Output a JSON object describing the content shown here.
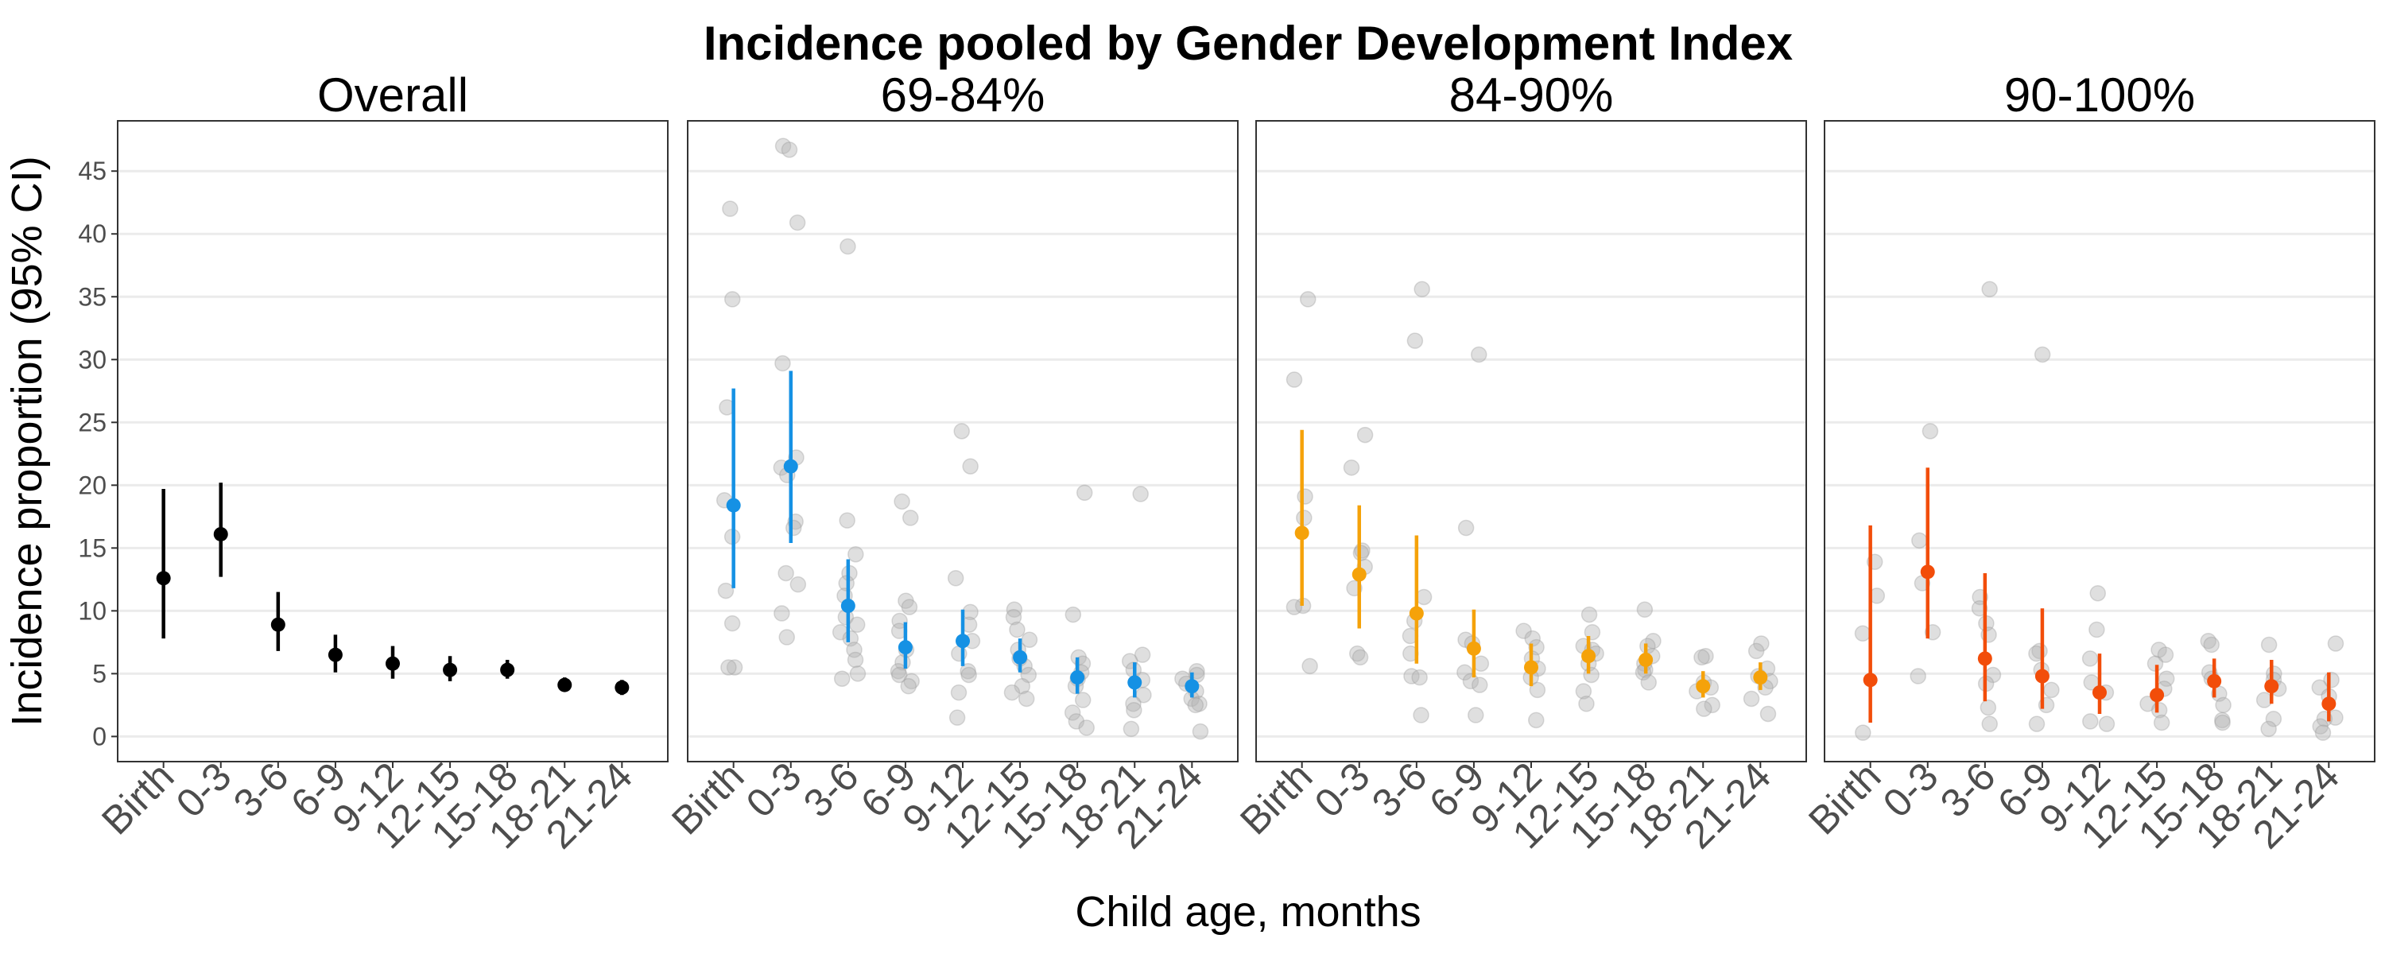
{
  "chart_data": {
    "type": "scatter",
    "title": "Incidence pooled by Gender Development Index",
    "xlabel": "Child age, months",
    "ylabel": "Incidence proportion (95% CI)",
    "ylim": [
      -2,
      49
    ],
    "yticks": [
      0,
      5,
      10,
      15,
      20,
      25,
      30,
      35,
      40,
      45
    ],
    "categories": [
      "Birth",
      "0-3",
      "3-6",
      "6-9",
      "9-12",
      "12-15",
      "15-18",
      "18-21",
      "21-24"
    ],
    "grid": true,
    "legend": "none",
    "panels": [
      {
        "label": "Overall",
        "color": "#000000",
        "estimates": [
          {
            "category": "Birth",
            "value": 12.6,
            "lower": 7.8,
            "upper": 19.7
          },
          {
            "category": "0-3",
            "value": 16.1,
            "lower": 12.7,
            "upper": 20.2
          },
          {
            "category": "3-6",
            "value": 8.9,
            "lower": 6.8,
            "upper": 11.5
          },
          {
            "category": "6-9",
            "value": 6.5,
            "lower": 5.1,
            "upper": 8.1
          },
          {
            "category": "9-12",
            "value": 5.8,
            "lower": 4.6,
            "upper": 7.2
          },
          {
            "category": "12-15",
            "value": 5.3,
            "lower": 4.4,
            "upper": 6.4
          },
          {
            "category": "15-18",
            "value": 5.3,
            "lower": 4.6,
            "upper": 6.1
          },
          {
            "category": "18-21",
            "value": 4.1,
            "lower": 3.6,
            "upper": 4.7
          },
          {
            "category": "21-24",
            "value": 3.9,
            "lower": 3.3,
            "upper": 4.5
          }
        ],
        "studies": []
      },
      {
        "label": "69-84%",
        "color": "#1591e4",
        "estimates": [
          {
            "category": "Birth",
            "value": 18.4,
            "lower": 11.8,
            "upper": 27.7
          },
          {
            "category": "0-3",
            "value": 21.5,
            "lower": 15.4,
            "upper": 29.1
          },
          {
            "category": "3-6",
            "value": 10.4,
            "lower": 7.5,
            "upper": 14.1
          },
          {
            "category": "6-9",
            "value": 7.1,
            "lower": 5.4,
            "upper": 9.1
          },
          {
            "category": "9-12",
            "value": 7.6,
            "lower": 5.6,
            "upper": 10.1
          },
          {
            "category": "12-15",
            "value": 6.3,
            "lower": 5.1,
            "upper": 7.8
          },
          {
            "category": "15-18",
            "value": 4.7,
            "lower": 3.4,
            "upper": 6.3
          },
          {
            "category": "18-21",
            "value": 4.3,
            "lower": 3.1,
            "upper": 5.9
          },
          {
            "category": "21-24",
            "value": 4.0,
            "lower": 3.1,
            "upper": 5.1
          }
        ],
        "studies": [
          {
            "category": "Birth",
            "values": [
              42,
              34.8,
              26.2,
              18.8,
              15.9,
              11.6,
              9.0,
              5.5,
              5.5
            ]
          },
          {
            "category": "0-3",
            "values": [
              47,
              46.7,
              40.9,
              29.7,
              22.2,
              21.4,
              20.8,
              17.1,
              16.6,
              13,
              12.1,
              9.8,
              7.9
            ]
          },
          {
            "category": "3-6",
            "values": [
              39,
              17.2,
              14.5,
              13,
              12.2,
              11.2,
              9.5,
              8.9,
              8.3,
              7.8,
              6.9,
              6.1,
              5,
              4.6
            ]
          },
          {
            "category": "6-9",
            "values": [
              18.7,
              17.4,
              10.8,
              10.3,
              9.2,
              8.4,
              6.9,
              5.9,
              5.2,
              4.9,
              4.4,
              4.0
            ]
          },
          {
            "category": "9-12",
            "values": [
              24.3,
              21.5,
              12.6,
              9.9,
              8.9,
              7.6,
              6.6,
              5.2,
              4.9,
              3.5,
              1.5
            ]
          },
          {
            "category": "12-15",
            "values": [
              10.1,
              9.5,
              8.5,
              7.7,
              6.9,
              6.2,
              5.6,
              4.9,
              4.0,
              3.5,
              3.0
            ]
          },
          {
            "category": "15-18",
            "values": [
              19.4,
              9.7,
              6.3,
              5.8,
              5.1,
              4.6,
              4.0,
              2.9,
              1.9,
              1.2,
              0.7
            ]
          },
          {
            "category": "18-21",
            "values": [
              19.3,
              6.5,
              6.0,
              5.3,
              4.5,
              3.3,
              2.6,
              2.1,
              0.6
            ]
          },
          {
            "category": "21-24",
            "values": [
              5.2,
              4.9,
              4.6,
              4.2,
              3.6,
              3.0,
              2.6,
              2.5,
              0.4
            ]
          }
        ]
      },
      {
        "label": "84-90%",
        "color": "#f5a20a",
        "estimates": [
          {
            "category": "Birth",
            "value": 16.2,
            "lower": 10.4,
            "upper": 24.4
          },
          {
            "category": "0-3",
            "value": 12.9,
            "lower": 8.6,
            "upper": 18.4
          },
          {
            "category": "3-6",
            "value": 9.8,
            "lower": 5.8,
            "upper": 16.0
          },
          {
            "category": "6-9",
            "value": 7.0,
            "lower": 4.7,
            "upper": 10.1
          },
          {
            "category": "9-12",
            "value": 5.5,
            "lower": 4.0,
            "upper": 7.4
          },
          {
            "category": "12-15",
            "value": 6.4,
            "lower": 5.0,
            "upper": 8.0
          },
          {
            "category": "15-18",
            "value": 6.1,
            "lower": 5.0,
            "upper": 7.4
          },
          {
            "category": "18-21",
            "value": 4.0,
            "lower": 3.1,
            "upper": 5.2
          },
          {
            "category": "21-24",
            "value": 4.7,
            "lower": 3.7,
            "upper": 5.9
          }
        ],
        "studies": [
          {
            "category": "Birth",
            "values": [
              34.8,
              28.4,
              19.1,
              17.4,
              10.4,
              10.3,
              5.6
            ]
          },
          {
            "category": "0-3",
            "values": [
              24.0,
              21.4,
              14.8,
              14.6,
              13.5,
              11.8,
              6.6,
              6.3
            ]
          },
          {
            "category": "3-6",
            "values": [
              35.6,
              31.5,
              11.1,
              9.2,
              8.0,
              6.6,
              4.8,
              4.7,
              1.7
            ]
          },
          {
            "category": "6-9",
            "values": [
              30.4,
              16.6,
              7.7,
              7.4,
              5.8,
              5.1,
              4.4,
              4.1,
              1.7
            ]
          },
          {
            "category": "9-12",
            "values": [
              8.4,
              7.8,
              7.1,
              6.2,
              5.4,
              4.7,
              3.7,
              1.3
            ]
          },
          {
            "category": "12-15",
            "values": [
              9.7,
              8.3,
              7.2,
              6.9,
              6.6,
              5.8,
              4.9,
              3.6,
              2.6
            ]
          },
          {
            "category": "15-18",
            "values": [
              10.1,
              7.6,
              7.2,
              6.4,
              5.8,
              5.3,
              5.1,
              4.3
            ]
          },
          {
            "category": "18-21",
            "values": [
              6.4,
              6.3,
              4.3,
              3.9,
              3.6,
              2.5,
              2.2
            ]
          },
          {
            "category": "21-24",
            "values": [
              7.4,
              6.8,
              5.4,
              4.8,
              4.4,
              3.9,
              3.0,
              1.8
            ]
          }
        ]
      },
      {
        "label": "90-100%",
        "color": "#f24d0a",
        "estimates": [
          {
            "category": "Birth",
            "value": 4.5,
            "lower": 1.1,
            "upper": 16.8
          },
          {
            "category": "0-3",
            "value": 13.1,
            "lower": 7.8,
            "upper": 21.4
          },
          {
            "category": "3-6",
            "value": 6.2,
            "lower": 2.8,
            "upper": 13.0
          },
          {
            "category": "6-9",
            "value": 4.8,
            "lower": 2.2,
            "upper": 10.2
          },
          {
            "category": "9-12",
            "value": 3.5,
            "lower": 1.8,
            "upper": 6.6
          },
          {
            "category": "12-15",
            "value": 3.3,
            "lower": 1.9,
            "upper": 5.7
          },
          {
            "category": "15-18",
            "value": 4.4,
            "lower": 3.1,
            "upper": 6.2
          },
          {
            "category": "18-21",
            "value": 4.0,
            "lower": 2.6,
            "upper": 6.1
          },
          {
            "category": "21-24",
            "value": 2.6,
            "lower": 1.2,
            "upper": 5.1
          }
        ],
        "studies": [
          {
            "category": "Birth",
            "values": [
              13.9,
              11.2,
              8.2,
              0.3
            ]
          },
          {
            "category": "0-3",
            "values": [
              24.3,
              15.6,
              12.2,
              8.3,
              4.8
            ]
          },
          {
            "category": "3-6",
            "values": [
              35.6,
              11.1,
              10.2,
              9.0,
              8.1,
              4.9,
              4.2,
              2.3,
              1.0
            ]
          },
          {
            "category": "6-9",
            "values": [
              30.4,
              6.8,
              6.6,
              5.3,
              3.7,
              2.5,
              1.0
            ]
          },
          {
            "category": "9-12",
            "values": [
              11.4,
              8.5,
              6.2,
              4.3,
              3.5,
              1.2,
              1.0
            ]
          },
          {
            "category": "12-15",
            "values": [
              6.9,
              6.5,
              5.8,
              4.6,
              3.8,
              2.6,
              2.1,
              1.1
            ]
          },
          {
            "category": "15-18",
            "values": [
              7.6,
              7.3,
              5.1,
              4.6,
              3.4,
              2.5,
              1.3,
              1.1
            ]
          },
          {
            "category": "18-21",
            "values": [
              7.3,
              5.0,
              4.5,
              3.8,
              2.9,
              1.4,
              0.6
            ]
          },
          {
            "category": "21-24",
            "values": [
              7.4,
              4.5,
              3.9,
              3.2,
              1.5,
              1.4,
              0.8,
              0.3
            ]
          }
        ]
      }
    ]
  }
}
